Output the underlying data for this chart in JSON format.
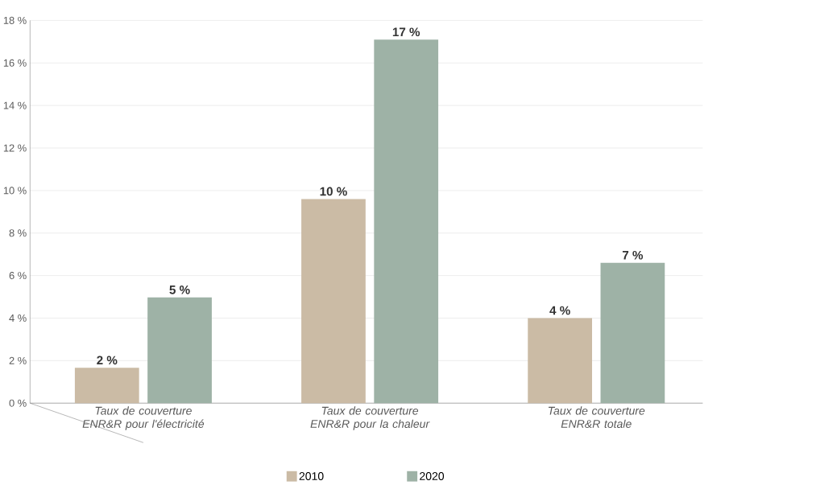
{
  "chart_data": {
    "type": "bar",
    "categories": [
      "Taux de couverture ENR&R pour l'électricité",
      "Taux de couverture ENR&R pour la chaleur",
      "Taux de couverture ENR&R totale"
    ],
    "series": [
      {
        "name": "2010",
        "color": "#cbbba5",
        "values": [
          1.66,
          9.6,
          4.0
        ],
        "value_labels": [
          "2 %",
          "10 %",
          "4 %"
        ]
      },
      {
        "name": "2020",
        "color": "#9eb2a6",
        "values": [
          4.97,
          17.1,
          6.6
        ],
        "value_labels": [
          "5 %",
          "17 %",
          "7 %"
        ]
      }
    ],
    "ylim": [
      0,
      18
    ],
    "yticks": [
      {
        "value": 0,
        "label": "0 %"
      },
      {
        "value": 2,
        "label": "2 %"
      },
      {
        "value": 4,
        "label": "4 %"
      },
      {
        "value": 6,
        "label": "6 %"
      },
      {
        "value": 8,
        "label": "8 %"
      },
      {
        "value": 10,
        "label": "10 %"
      },
      {
        "value": 12,
        "label": "12 %"
      },
      {
        "value": 14,
        "label": "14 %"
      },
      {
        "value": 16,
        "label": "16 %"
      },
      {
        "value": 18,
        "label": "18 %"
      }
    ],
    "grid": "y",
    "legend": "bottom"
  }
}
